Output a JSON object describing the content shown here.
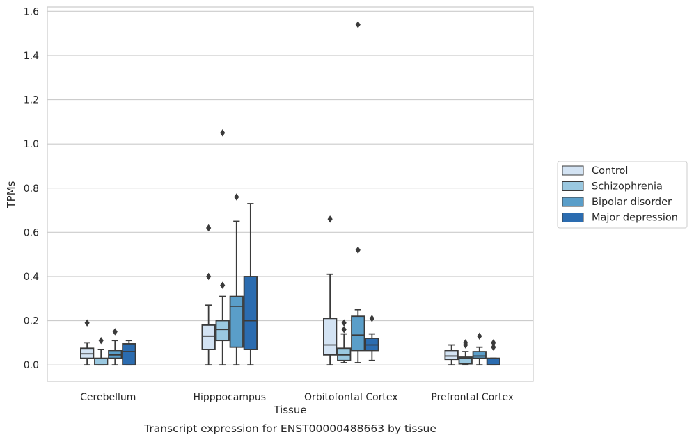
{
  "chart_data": {
    "type": "box",
    "title": "",
    "caption": "Transcript expression for ENST00000488663 by tissue",
    "xlabel": "Tissue",
    "ylabel": "TPMs",
    "ylim": [
      -0.075,
      1.62
    ],
    "yticks": [
      0.0,
      0.2,
      0.4,
      0.6,
      0.8,
      1.0,
      1.2,
      1.4,
      1.6
    ],
    "grid": "horizontal",
    "legend": {
      "placement": "right",
      "entries": [
        "Control",
        "Schizophrenia",
        "Bipolar disorder",
        "Major depression"
      ]
    },
    "categories": [
      "Cerebellum",
      "Hipppocampus",
      "Orbitofontal Cortex",
      "Prefrontal Cortex"
    ],
    "series": [
      {
        "name": "Control",
        "color": "#d3e3f3",
        "boxes": [
          {
            "whislo": 0.0,
            "q1": 0.03,
            "med": 0.05,
            "q3": 0.075,
            "whishi": 0.1,
            "fliers": [
              0.19
            ]
          },
          {
            "whislo": 0.0,
            "q1": 0.07,
            "med": 0.13,
            "q3": 0.18,
            "whishi": 0.27,
            "fliers": [
              0.4,
              0.62
            ]
          },
          {
            "whislo": 0.0,
            "q1": 0.045,
            "med": 0.09,
            "q3": 0.21,
            "whishi": 0.41,
            "fliers": [
              0.66
            ]
          },
          {
            "whislo": 0.0,
            "q1": 0.025,
            "med": 0.04,
            "q3": 0.065,
            "whishi": 0.09,
            "fliers": []
          }
        ]
      },
      {
        "name": "Schizophrenia",
        "color": "#9ac8e0",
        "boxes": [
          {
            "whislo": 0.0,
            "q1": 0.0,
            "med": 0.0,
            "q3": 0.03,
            "whishi": 0.07,
            "fliers": [
              0.11
            ]
          },
          {
            "whislo": 0.0,
            "q1": 0.11,
            "med": 0.16,
            "q3": 0.2,
            "whishi": 0.31,
            "fliers": [
              0.36,
              1.05
            ]
          },
          {
            "whislo": 0.01,
            "q1": 0.02,
            "med": 0.045,
            "q3": 0.075,
            "whishi": 0.14,
            "fliers": [
              0.16,
              0.19
            ]
          },
          {
            "whislo": 0.0,
            "q1": 0.005,
            "med": 0.03,
            "q3": 0.035,
            "whishi": 0.06,
            "fliers": [
              0.09,
              0.1
            ]
          }
        ]
      },
      {
        "name": "Bipolar disorder",
        "color": "#5a9ec9",
        "boxes": [
          {
            "whislo": 0.0,
            "q1": 0.03,
            "med": 0.045,
            "q3": 0.065,
            "whishi": 0.11,
            "fliers": [
              0.15
            ]
          },
          {
            "whislo": 0.0,
            "q1": 0.08,
            "med": 0.265,
            "q3": 0.31,
            "whishi": 0.65,
            "fliers": [
              0.76
            ]
          },
          {
            "whislo": 0.01,
            "q1": 0.065,
            "med": 0.135,
            "q3": 0.22,
            "whishi": 0.25,
            "fliers": [
              0.52,
              1.54
            ]
          },
          {
            "whislo": 0.0,
            "q1": 0.03,
            "med": 0.04,
            "q3": 0.06,
            "whishi": 0.08,
            "fliers": [
              0.13
            ]
          }
        ]
      },
      {
        "name": "Major depression",
        "color": "#2b6cb0",
        "boxes": [
          {
            "whislo": 0.0,
            "q1": 0.0,
            "med": 0.06,
            "q3": 0.095,
            "whishi": 0.11,
            "fliers": []
          },
          {
            "whislo": 0.0,
            "q1": 0.07,
            "med": 0.2,
            "q3": 0.4,
            "whishi": 0.73,
            "fliers": []
          },
          {
            "whislo": 0.02,
            "q1": 0.065,
            "med": 0.09,
            "q3": 0.12,
            "whishi": 0.14,
            "fliers": [
              0.21
            ]
          },
          {
            "whislo": 0.0,
            "q1": 0.0,
            "med": 0.0,
            "q3": 0.03,
            "whishi": 0.03,
            "fliers": [
              0.08,
              0.1
            ]
          }
        ]
      }
    ]
  }
}
